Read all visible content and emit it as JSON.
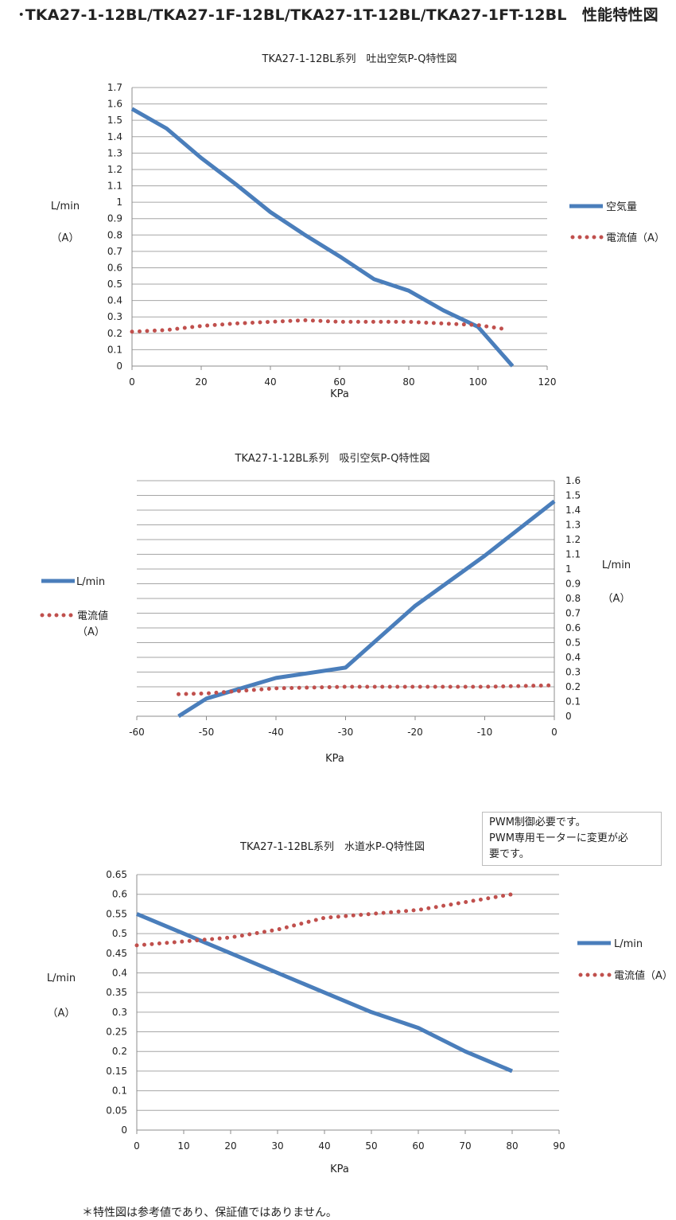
{
  "page_title": "･TKA27-1-12BL/TKA27-1F-12BL/TKA27-1T-12BL/TKA27-1FT-12BL　性能特性図",
  "note_box": {
    "line1": "PWM制御必要です。",
    "line2": "PWM専用モーターに変更が必",
    "line3": "要です。"
  },
  "footnote": "＊特性図は参考値であり、保証値ではありません。",
  "colors": {
    "air_line": "#4a7ebb",
    "current_dots": "#c0504d",
    "grid": "#a6a6a6"
  },
  "chart_data": [
    {
      "type": "line",
      "title": "TKA27-1-12BL系列　吐出空気P-Q特性図",
      "xlabel": "KPa",
      "ylabel": [
        "L/min",
        "（A）"
      ],
      "xlim": [
        0,
        120
      ],
      "ylim": [
        0,
        1.7
      ],
      "x_ticks": [
        "0",
        "20",
        "40",
        "60",
        "80",
        "100",
        "120"
      ],
      "y_ticks": [
        "0",
        "0.1",
        "0.2",
        "0.3",
        "0.4",
        "0.5",
        "0.6",
        "0.7",
        "0.8",
        "0.9",
        "1",
        "1.1",
        "1.2",
        "1.3",
        "1.4",
        "1.5",
        "1.6",
        "1.7"
      ],
      "legend": "right",
      "series": [
        {
          "name": "空気量",
          "style": "solid",
          "points": [
            [
              0,
              1.57
            ],
            [
              10,
              1.45
            ],
            [
              20,
              1.27
            ],
            [
              30,
              1.11
            ],
            [
              40,
              0.94
            ],
            [
              50,
              0.8
            ],
            [
              60,
              0.67
            ],
            [
              70,
              0.53
            ],
            [
              80,
              0.46
            ],
            [
              90,
              0.34
            ],
            [
              100,
              0.24
            ],
            [
              110,
              0
            ]
          ]
        },
        {
          "name": "電流値（A）",
          "style": "dotted",
          "points": [
            [
              0,
              0.21
            ],
            [
              10,
              0.22
            ],
            [
              20,
              0.245
            ],
            [
              30,
              0.26
            ],
            [
              40,
              0.27
            ],
            [
              50,
              0.28
            ],
            [
              60,
              0.27
            ],
            [
              70,
              0.27
            ],
            [
              80,
              0.27
            ],
            [
              90,
              0.26
            ],
            [
              100,
              0.25
            ],
            [
              108,
              0.225
            ]
          ]
        }
      ]
    },
    {
      "type": "line",
      "title": "TKA27-1-12BL系列　吸引空気P-Q特性図",
      "xlabel": "KPa",
      "ylabel": [
        "L/min",
        "（A）"
      ],
      "xlim": [
        -60,
        0
      ],
      "ylim": [
        0,
        1.6
      ],
      "x_ticks": [
        "-60",
        "-50",
        "-40",
        "-30",
        "-20",
        "-10",
        "0"
      ],
      "y_ticks": [
        "0",
        "0.1",
        "0.2",
        "0.3",
        "0.4",
        "0.5",
        "0.6",
        "0.7",
        "0.8",
        "0.9",
        "1",
        "1.1",
        "1.2",
        "1.3",
        "1.4",
        "1.5",
        "1.6"
      ],
      "legend": "left",
      "series": [
        {
          "name": "L/min",
          "style": "solid",
          "points": [
            [
              -54,
              0
            ],
            [
              -50,
              0.12
            ],
            [
              -40,
              0.26
            ],
            [
              -30,
              0.33
            ],
            [
              -20,
              0.75
            ],
            [
              -10,
              1.09
            ],
            [
              0,
              1.46
            ]
          ]
        },
        {
          "name": "電流値\n（A）",
          "style": "dotted",
          "points": [
            [
              -54,
              0.15
            ],
            [
              -50,
              0.155
            ],
            [
              -40,
              0.19
            ],
            [
              -30,
              0.2
            ],
            [
              -20,
              0.2
            ],
            [
              -10,
              0.2
            ],
            [
              0,
              0.21
            ]
          ]
        }
      ]
    },
    {
      "type": "line",
      "title": "TKA27-1-12BL系列　水道水P-Q特性図",
      "xlabel": "KPa",
      "ylabel": [
        "L/min",
        "（A）"
      ],
      "xlim": [
        0,
        90
      ],
      "ylim": [
        0,
        0.65
      ],
      "x_ticks": [
        "0",
        "10",
        "20",
        "30",
        "40",
        "50",
        "60",
        "70",
        "80",
        "90"
      ],
      "y_ticks": [
        "0",
        "0.05",
        "0.1",
        "0.15",
        "0.2",
        "0.25",
        "0.3",
        "0.35",
        "0.4",
        "0.45",
        "0.5",
        "0.55",
        "0.6",
        "0.65"
      ],
      "legend": "right",
      "series": [
        {
          "name": "L/min",
          "style": "solid",
          "points": [
            [
              0,
              0.55
            ],
            [
              10,
              0.5
            ],
            [
              20,
              0.45
            ],
            [
              30,
              0.4
            ],
            [
              40,
              0.35
            ],
            [
              50,
              0.3
            ],
            [
              60,
              0.26
            ],
            [
              70,
              0.2
            ],
            [
              80,
              0.15
            ]
          ]
        },
        {
          "name": "電流値（A）",
          "style": "dotted",
          "points": [
            [
              0,
              0.47
            ],
            [
              10,
              0.48
            ],
            [
              20,
              0.49
            ],
            [
              30,
              0.51
            ],
            [
              40,
              0.54
            ],
            [
              50,
              0.55
            ],
            [
              60,
              0.56
            ],
            [
              70,
              0.58
            ],
            [
              80,
              0.6
            ]
          ]
        }
      ]
    }
  ]
}
